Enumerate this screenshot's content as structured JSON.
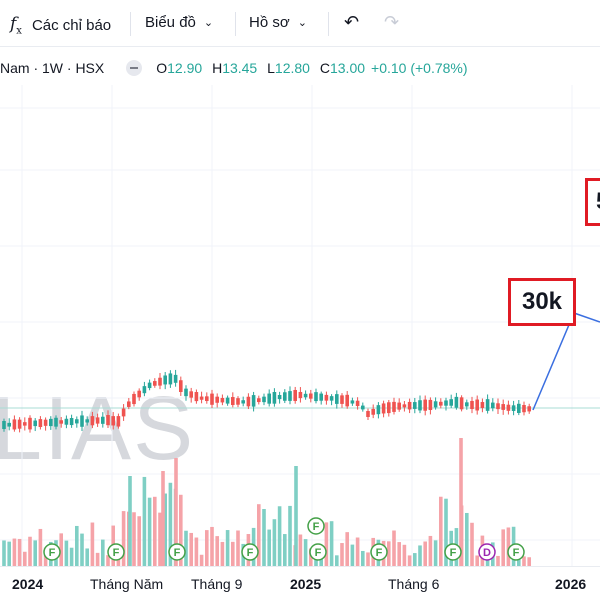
{
  "toolbar": {
    "indicators_label": "Các chỉ báo",
    "chart_label": "Biểu đồ",
    "profile_label": "Hồ sơ"
  },
  "legend": {
    "symbol": "Nam · 1W · HSX",
    "open_label": "O",
    "open_value": "12.90",
    "high_label": "H",
    "high_value": "13.45",
    "low_label": "L",
    "low_value": "12.80",
    "close_label": "C",
    "close_value": "13.00",
    "change": "+0.10 (+0.78%)"
  },
  "annotations": {
    "target_label": "30k",
    "partial_box_label": "5"
  },
  "watermark": "LIAS",
  "xaxis": [
    "2024",
    "Tháng Năm",
    "Tháng 9",
    "2025",
    "Tháng 6",
    "2026"
  ],
  "event_markers": [
    "F",
    "F",
    "F",
    "F",
    "F",
    "F",
    "F",
    "D",
    "F"
  ],
  "colors": {
    "up": "#26a69a",
    "down": "#ef5350",
    "vol_up": "#7fcfc4",
    "vol_down": "#f5a3a8",
    "projection": "#3b6fe0",
    "highlight": "#e01b24",
    "dividend": "#9c27b0"
  },
  "icons": [
    "fx-icon",
    "chevron-down-icon",
    "undo-icon",
    "redo-icon",
    "eye-icon"
  ]
}
